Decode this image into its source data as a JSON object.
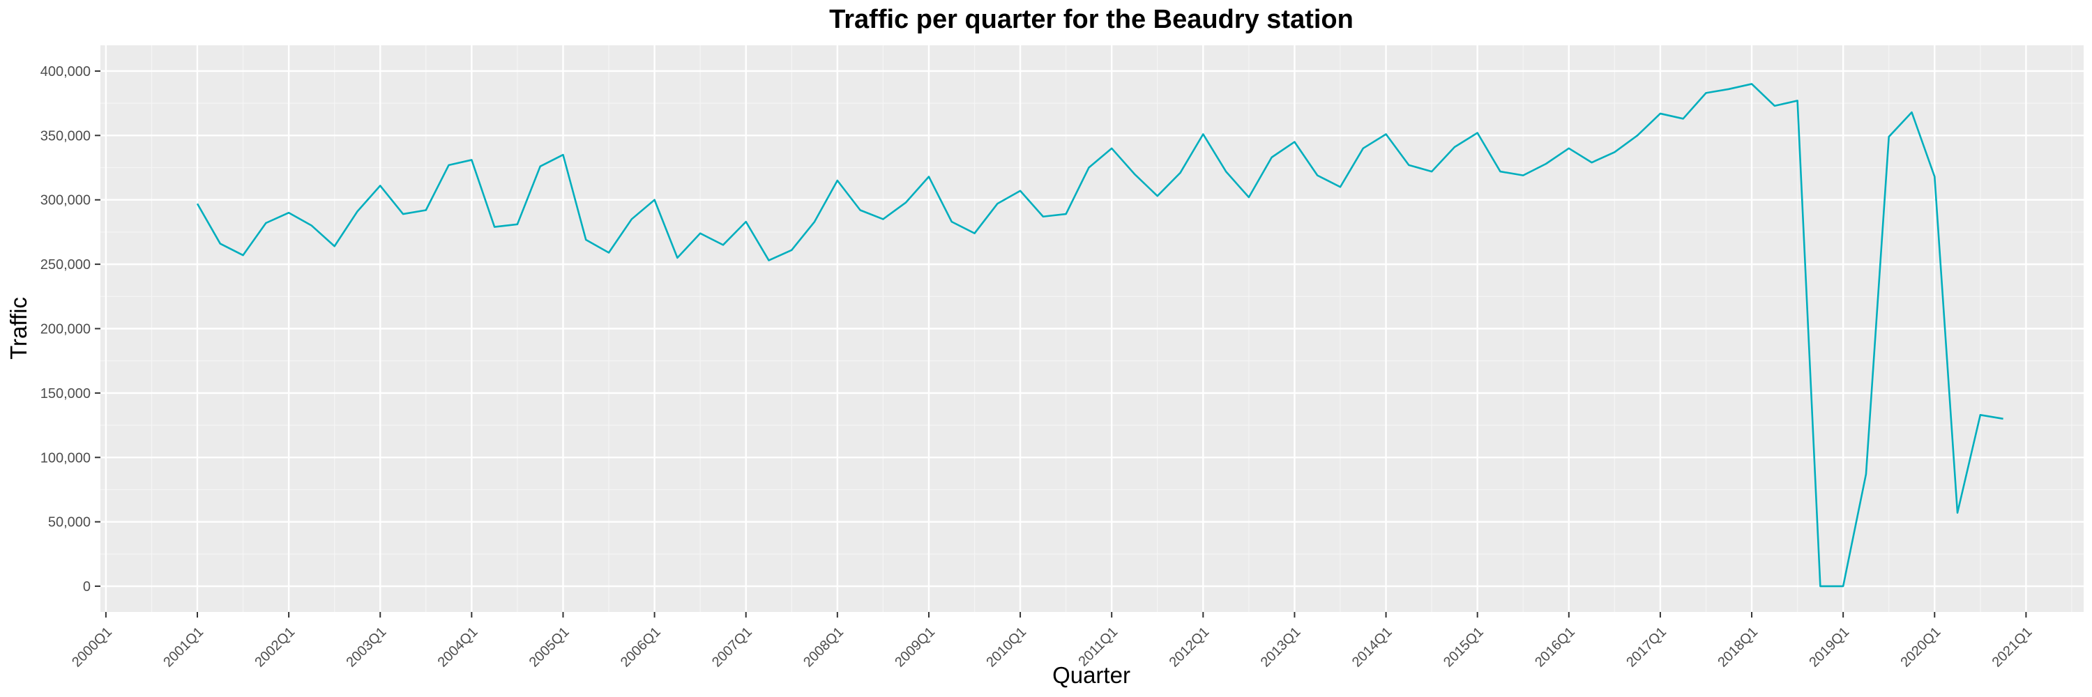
{
  "chart_data": {
    "type": "line",
    "title": "Traffic per quarter for the Beaudry station",
    "xlabel": "Quarter",
    "ylabel": "Traffic",
    "ylim": [
      0,
      400000
    ],
    "y_ticks": [
      0,
      50000,
      100000,
      150000,
      200000,
      250000,
      300000,
      350000,
      400000
    ],
    "y_tick_labels": [
      "0",
      "50,000",
      "100,000",
      "150,000",
      "200,000",
      "250,000",
      "300,000",
      "350,000",
      "400,000"
    ],
    "x_tick_labels": [
      "2000Q1",
      "2001Q1",
      "2002Q1",
      "2003Q1",
      "2004Q1",
      "2005Q1",
      "2006Q1",
      "2007Q1",
      "2008Q1",
      "2009Q1",
      "2010Q1",
      "2011Q1",
      "2012Q1",
      "2013Q1",
      "2014Q1",
      "2015Q1",
      "2016Q1",
      "2017Q1",
      "2018Q1",
      "2019Q1",
      "2020Q1",
      "2021Q1"
    ],
    "grid": true,
    "line_color": "#00aebd",
    "panel_color": "#ebebeb",
    "series": [
      {
        "x": [
          "2001Q1",
          "2001Q2",
          "2001Q3",
          "2001Q4",
          "2002Q1",
          "2002Q2",
          "2002Q3",
          "2002Q4",
          "2003Q1",
          "2003Q2",
          "2003Q3",
          "2003Q4",
          "2004Q1",
          "2004Q2",
          "2004Q3",
          "2004Q4",
          "2005Q1",
          "2005Q2",
          "2005Q3",
          "2005Q4",
          "2006Q1",
          "2006Q2",
          "2006Q3",
          "2006Q4",
          "2007Q1",
          "2007Q2",
          "2007Q3",
          "2007Q4",
          "2008Q1",
          "2008Q2",
          "2008Q3",
          "2008Q4",
          "2009Q1",
          "2009Q2",
          "2009Q3",
          "2009Q4",
          "2010Q1",
          "2010Q2",
          "2010Q3",
          "2010Q4",
          "2011Q1",
          "2011Q2",
          "2011Q3",
          "2011Q4",
          "2012Q1",
          "2012Q2",
          "2012Q3",
          "2012Q4",
          "2013Q1",
          "2013Q2",
          "2013Q3",
          "2013Q4",
          "2014Q1",
          "2014Q2",
          "2014Q3",
          "2014Q4",
          "2015Q1",
          "2015Q2",
          "2015Q3",
          "2015Q4",
          "2016Q1",
          "2016Q2",
          "2016Q3",
          "2016Q4",
          "2017Q1",
          "2017Q2",
          "2017Q3",
          "2017Q4",
          "2018Q1",
          "2018Q2",
          "2018Q3",
          "2018Q4",
          "2019Q1",
          "2019Q2",
          "2019Q3",
          "2019Q4",
          "2020Q1",
          "2020Q2",
          "2020Q3",
          "2020Q4"
        ],
        "values": [
          297000,
          266000,
          257000,
          282000,
          290000,
          280000,
          264000,
          291000,
          311000,
          289000,
          292000,
          327000,
          331000,
          279000,
          281000,
          326000,
          335000,
          269000,
          259000,
          285000,
          300000,
          255000,
          274000,
          265000,
          283000,
          253000,
          261000,
          283000,
          315000,
          292000,
          285000,
          298000,
          318000,
          283000,
          274000,
          297000,
          307000,
          287000,
          289000,
          325000,
          340000,
          320000,
          303000,
          321000,
          351000,
          322000,
          302000,
          333000,
          345000,
          319000,
          310000,
          340000,
          351000,
          327000,
          322000,
          341000,
          352000,
          322000,
          319000,
          328000,
          340000,
          329000,
          337000,
          350000,
          367000,
          363000,
          383000,
          386000,
          390000,
          373000,
          377000,
          0,
          0,
          87000,
          349000,
          368000,
          318000,
          57000,
          133000,
          130000
        ]
      }
    ]
  }
}
